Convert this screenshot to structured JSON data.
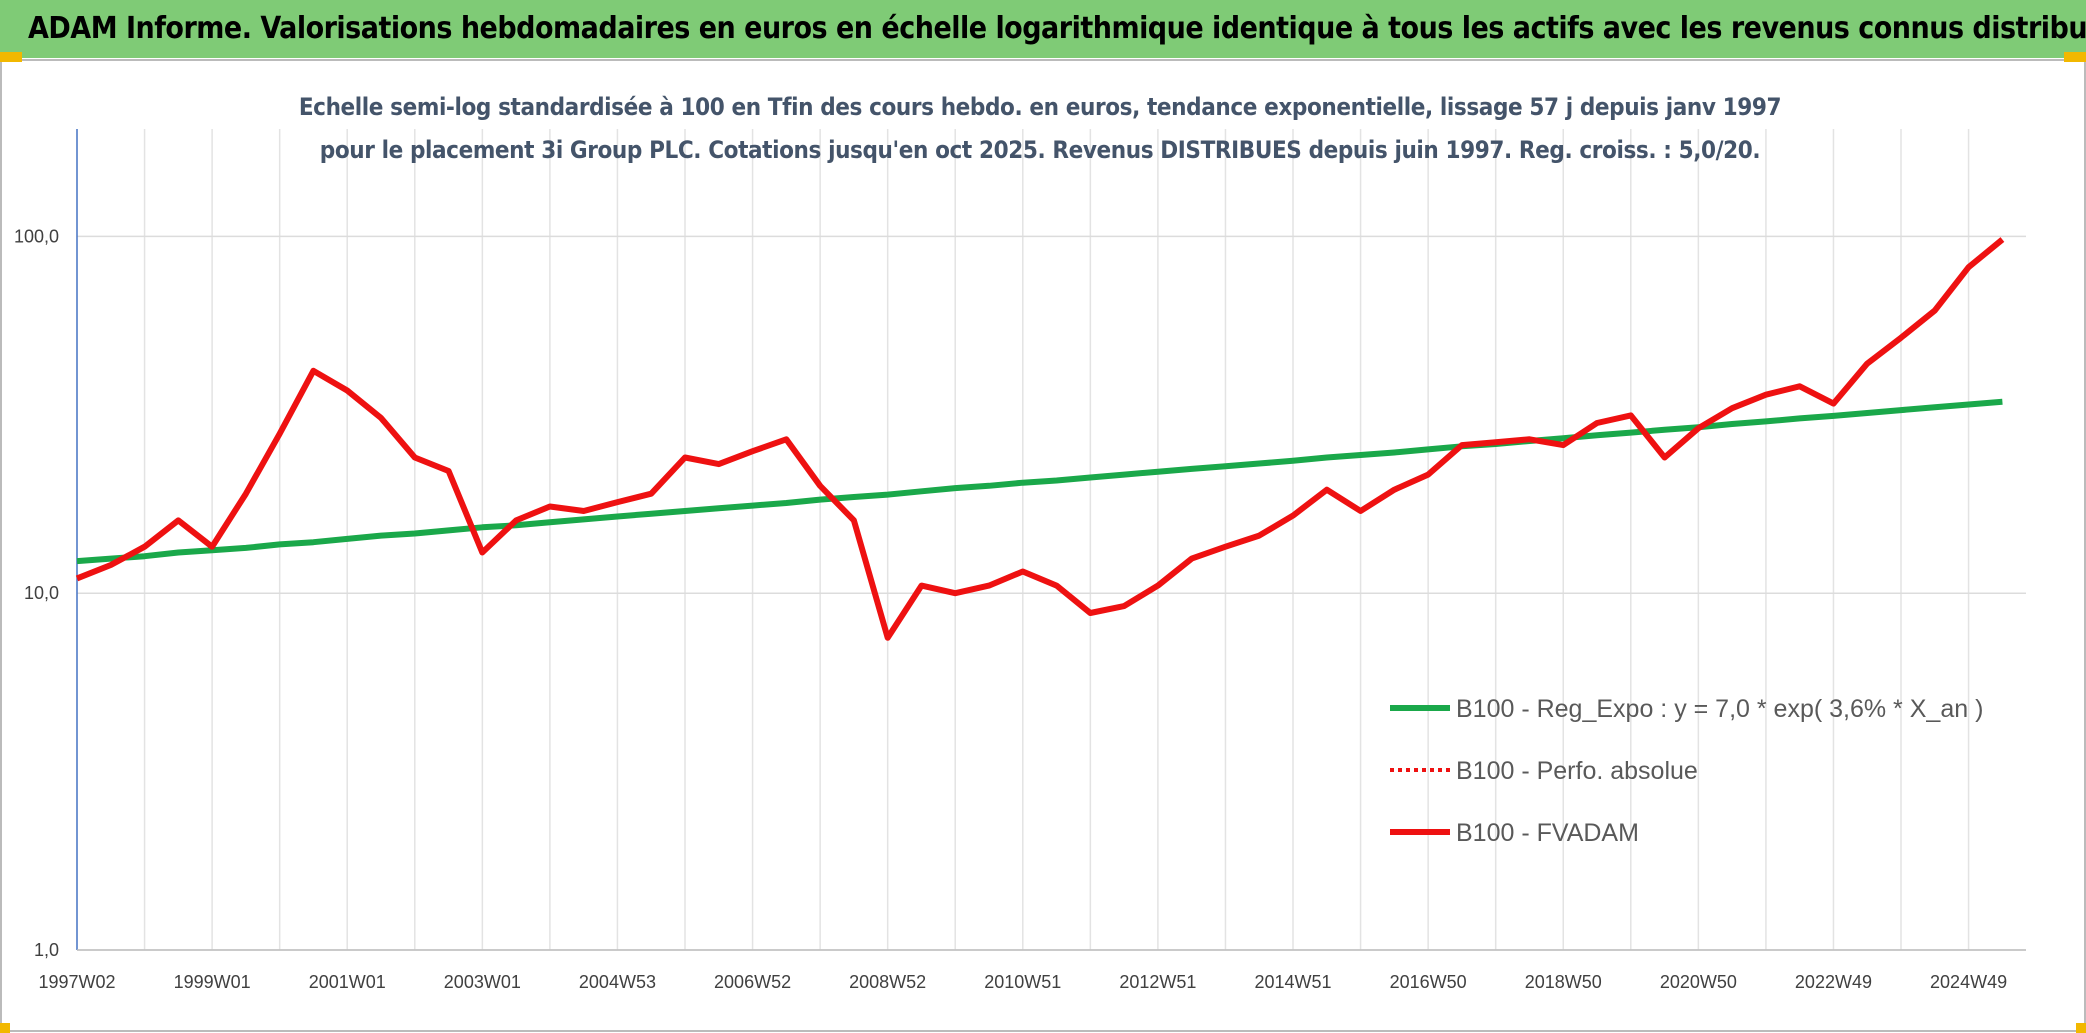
{
  "header": {
    "title": "ADAM Informe. Valorisations hebdomadaires en euros en échelle logarithmique identique à tous les actifs avec les revenus connus distribués"
  },
  "chart_data": {
    "type": "line",
    "subtitle": "Echelle semi-log standardisée à 100 en Tfin des cours hebdo. en euros, tendance exponentielle, lissage 57 j depuis janv 1997 pour le placement 3i Group PLC. Cotations jusqu'en oct 2025. Revenus DISTRIBUES depuis juin 1997. Reg. croiss. : 5,0/20.",
    "categories": [
      "1997W02",
      null,
      null,
      null,
      "1999W01",
      null,
      null,
      null,
      "2001W01",
      null,
      null,
      null,
      "2003W01",
      null,
      null,
      null,
      "2004W53",
      null,
      null,
      null,
      "2006W52",
      null,
      null,
      null,
      "2008W52",
      null,
      null,
      null,
      "2010W51",
      null,
      null,
      null,
      "2012W51",
      null,
      null,
      null,
      "2014W51",
      null,
      null,
      null,
      "2016W50",
      null,
      null,
      null,
      "2018W50",
      null,
      null,
      null,
      "2020W50",
      null,
      null,
      null,
      "2022W49",
      null,
      null,
      null,
      "2024W49",
      null
    ],
    "series": [
      {
        "name": "B100 - Reg_Expo : y = 7,0 * exp( 3,6% *  X_an )",
        "color": "#1aa84a",
        "style": "solid",
        "values": [
          12.3,
          12.5,
          12.7,
          13.0,
          13.2,
          13.4,
          13.7,
          13.9,
          14.2,
          14.5,
          14.7,
          15.0,
          15.3,
          15.5,
          15.8,
          16.1,
          16.4,
          16.7,
          17.0,
          17.3,
          17.6,
          17.9,
          18.3,
          18.6,
          18.9,
          19.3,
          19.7,
          20.0,
          20.4,
          20.7,
          21.1,
          21.5,
          21.9,
          22.3,
          22.7,
          23.1,
          23.5,
          24.0,
          24.4,
          24.8,
          25.3,
          25.8,
          26.2,
          26.7,
          27.2,
          27.7,
          28.2,
          28.7,
          29.2,
          29.8,
          30.3,
          30.9,
          31.4,
          32.0,
          32.6,
          33.2,
          33.8,
          34.4
        ]
      },
      {
        "name": "B100 - Perfo. absolue",
        "color": "#ee1111",
        "style": "dotted",
        "values": [
          null,
          null,
          null,
          null,
          null,
          null,
          null,
          null,
          null,
          null,
          null,
          null,
          null,
          null,
          null,
          null,
          null,
          null,
          null,
          null,
          null,
          null,
          null,
          null,
          null,
          null,
          null,
          null,
          null,
          null,
          null,
          null,
          null,
          null,
          null,
          null,
          null,
          null,
          null,
          null,
          null,
          null,
          null,
          null,
          null,
          null,
          null,
          null,
          null,
          null,
          null,
          null,
          null,
          null,
          null,
          null,
          null,
          null
        ]
      },
      {
        "name": "B100 - FVADAM",
        "color": "#ee1111",
        "style": "solid",
        "values": [
          11,
          12,
          13.5,
          16,
          13.5,
          19,
          28,
          42,
          37,
          31,
          24,
          22,
          13,
          16,
          17.5,
          17,
          18,
          19,
          24,
          23,
          25,
          27,
          20,
          16,
          7.5,
          10.5,
          10,
          10.5,
          11.5,
          10.5,
          8.8,
          9.2,
          10.5,
          12.5,
          13.5,
          14.5,
          16.5,
          19.5,
          17,
          19.5,
          21.5,
          26,
          26.5,
          27,
          26,
          30,
          31.5,
          24,
          29,
          33,
          36,
          38,
          34,
          44,
          52,
          62,
          82,
          98
        ]
      }
    ],
    "ylim": [
      1,
      200
    ],
    "log_scale": true,
    "grid": true,
    "yticks": [
      {
        "value": 1,
        "label": "1,0"
      },
      {
        "value": 10,
        "label": "10,0"
      },
      {
        "value": 100,
        "label": "100,0"
      }
    ],
    "legend": "lower right"
  }
}
